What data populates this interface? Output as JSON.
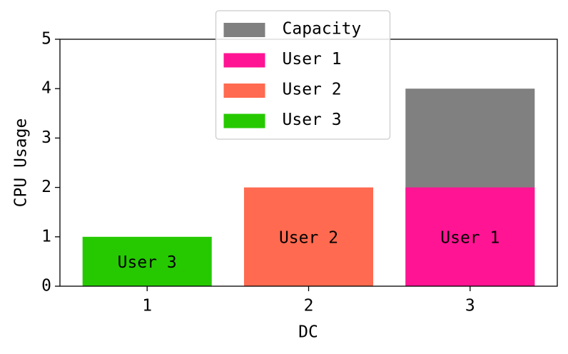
{
  "chart_data": {
    "type": "bar",
    "x_label": "DC",
    "y_label": "CPU Usage",
    "x": [
      1,
      2,
      3
    ],
    "series": [
      {
        "name": "Capacity",
        "color": "#808080",
        "values": [
          null,
          null,
          4
        ]
      },
      {
        "name": "User 1",
        "color": "#ff1493",
        "values": [
          null,
          null,
          2
        ],
        "inside_label": true
      },
      {
        "name": "User 2",
        "color": "#ff6a50",
        "values": [
          null,
          2,
          null
        ],
        "inside_label": true
      },
      {
        "name": "User 3",
        "color": "#26c900",
        "values": [
          1,
          null,
          null
        ],
        "inside_label": true
      }
    ],
    "xlim": [
      0.46,
      3.54
    ],
    "xticks": [
      1,
      2,
      3
    ],
    "ylim": [
      0,
      5
    ],
    "yticks": [
      0,
      1,
      2,
      3,
      4,
      5
    ],
    "legend": "upper center"
  }
}
